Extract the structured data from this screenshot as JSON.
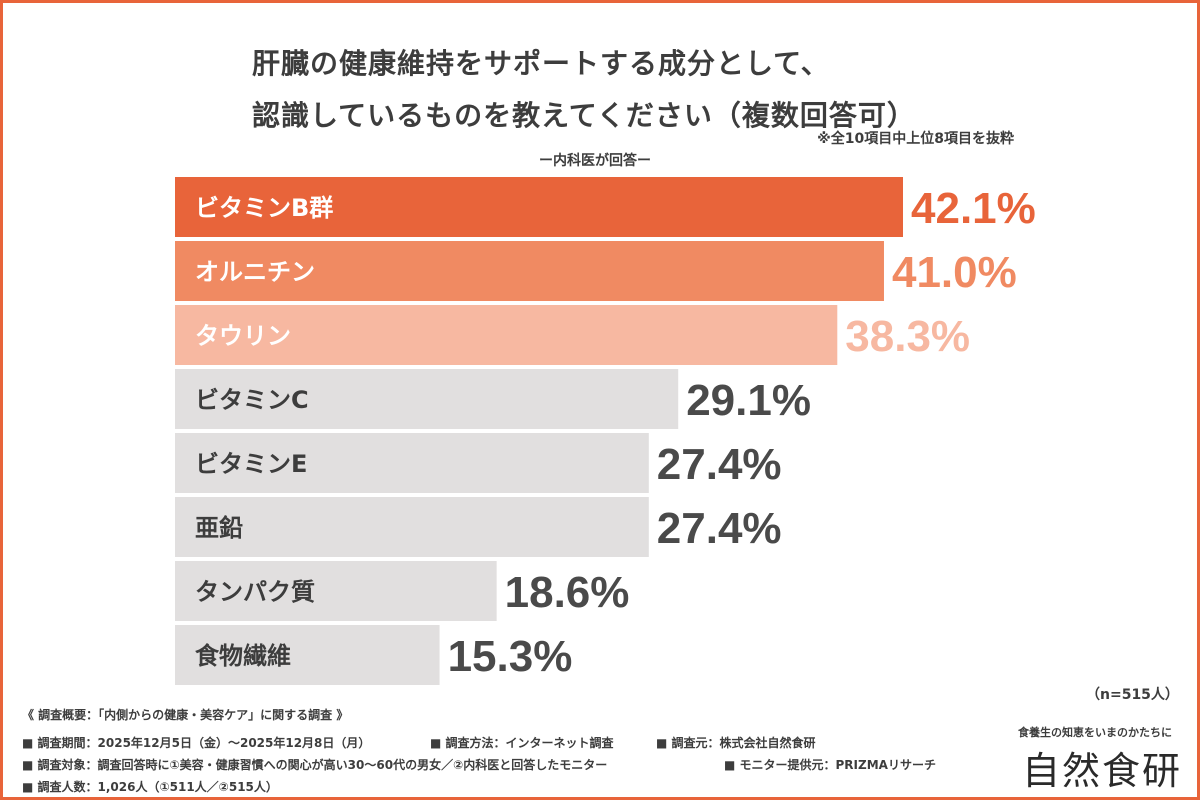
{
  "chart_data": {
    "type": "bar",
    "orientation": "horizontal",
    "title_lines": [
      "肝臓の健康維持をサポートする成分として、",
      "認識しているものを教えてください（複数回答可）"
    ],
    "note": "※全10項目中上位8項目を抜粋",
    "subtitle": "ー内科医が回答ー",
    "categories": [
      "ビタミンB群",
      "オルニチン",
      "タウリン",
      "ビタミンC",
      "ビタミンE",
      "亜鉛",
      "タンパク質",
      "食物繊維"
    ],
    "values": [
      42.1,
      41.0,
      38.3,
      29.1,
      27.4,
      27.4,
      18.6,
      15.3
    ],
    "value_labels": [
      "42.1%",
      "41.0%",
      "38.3%",
      "29.1%",
      "27.4%",
      "27.4%",
      "18.6%",
      "15.3%"
    ],
    "unit": "%",
    "xlim": [
      0,
      42.1
    ],
    "grid": false,
    "n": "（n=515人）",
    "colors": {
      "bars": [
        "#e8643a",
        "#f08a62",
        "#f7b8a1",
        "#e1dfdf",
        "#e1dfdf",
        "#e1dfdf",
        "#e1dfdf",
        "#e1dfdf"
      ],
      "bar_text": [
        "#ffffff",
        "#ffffff",
        "#ffffff",
        "#3d3d3d",
        "#3d3d3d",
        "#3d3d3d",
        "#3d3d3d",
        "#3d3d3d"
      ],
      "value_text": [
        "#e8643a",
        "#f08a62",
        "#f7b8a1",
        "#4a4a4a",
        "#4a4a4a",
        "#4a4a4a",
        "#4a4a4a",
        "#4a4a4a"
      ],
      "accent": "#e8643a"
    }
  },
  "footer": {
    "overview": "《 調査概要：「内側からの健康・美容ケア」に関する調査 》",
    "period": "■ 調査期間：2025年12月5日（金）〜2025年12月8日（月）",
    "method": "■ 調査方法：インターネット調査",
    "source": "■ 調査元：株式会社自然食研",
    "target": "■ 調査対象：調査回答時に①美容・健康習慣への関心が高い30〜60代の男女／②内科医と回答したモニター",
    "provider": "■ モニター提供元：PRIZMAリサーチ",
    "count": "■ 調査人数：1,026人（①511人／②515人）"
  },
  "brand": {
    "tagline": "食養生の知恵をいまのかたちに",
    "name": "自然食研"
  }
}
